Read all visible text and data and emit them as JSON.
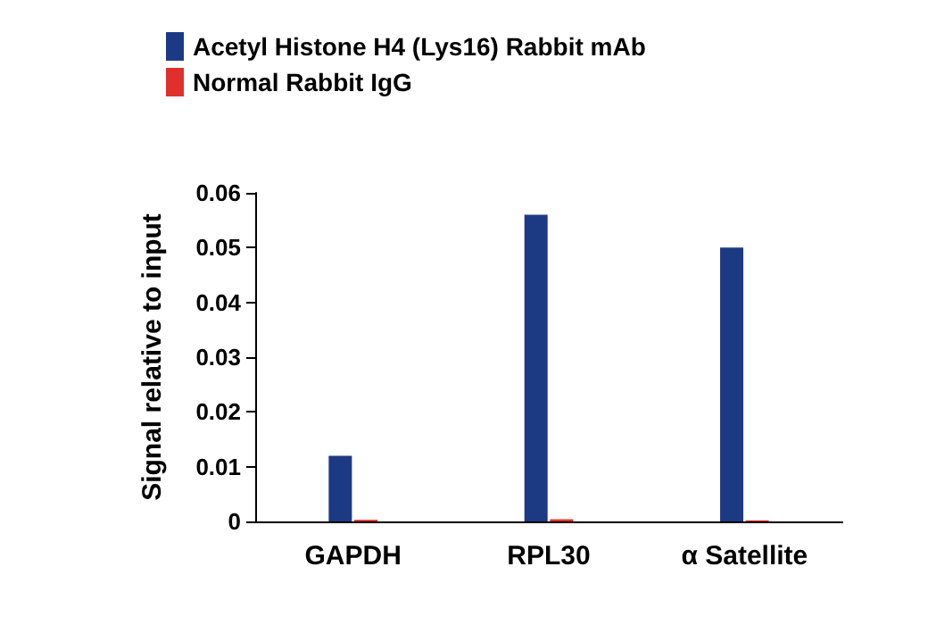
{
  "chart_data": {
    "type": "bar",
    "ylabel": "Signal relative to input",
    "categories": [
      "GAPDH",
      "RPL30",
      "α Satellite"
    ],
    "series": [
      {
        "name": "Acetyl Histone H4 (Lys16) Rabbit mAb",
        "color": "#1c3a84",
        "values": [
          0.012,
          0.056,
          0.05
        ]
      },
      {
        "name": "Normal Rabbit IgG",
        "color": "#e0302c",
        "values": [
          0.0003,
          0.0004,
          0.0002
        ]
      }
    ],
    "ylim": [
      0,
      0.06
    ],
    "yticks": [
      0,
      0.01,
      0.02,
      0.03,
      0.04,
      0.05,
      0.06
    ],
    "grid": false,
    "legend": "top left"
  }
}
